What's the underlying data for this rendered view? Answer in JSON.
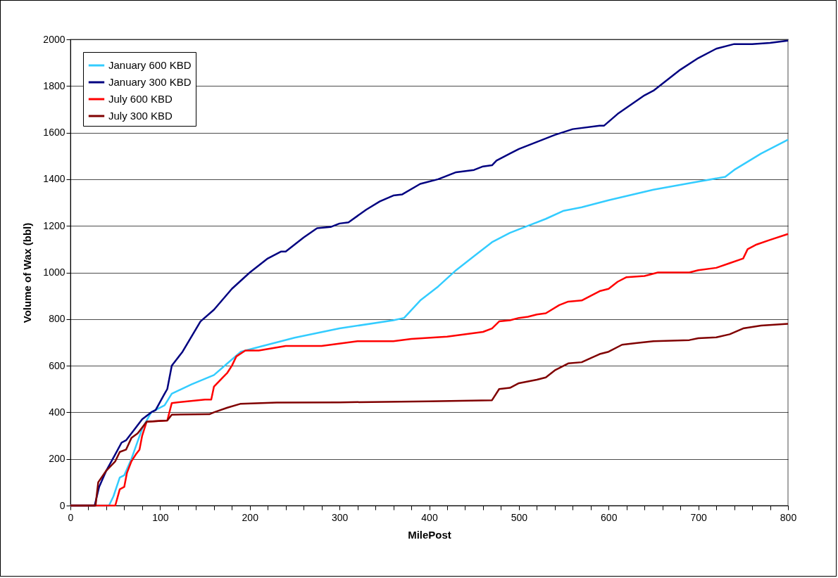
{
  "chart_data": {
    "type": "line",
    "xlabel": "MilePost",
    "ylabel": "Volume of Wax (bbl)",
    "xlim": [
      0,
      800
    ],
    "xticks": [
      0,
      {
        "value": 20,
        "label": null
      },
      {
        "value": 40,
        "label": null
      },
      {
        "value": 60,
        "label": null
      },
      {
        "value": 80,
        "label": null
      },
      100,
      {
        "value": 120,
        "label": null
      },
      {
        "value": 140,
        "label": null
      },
      {
        "value": 160,
        "label": null
      },
      {
        "value": 180,
        "label": null
      },
      200,
      {
        "value": 220,
        "label": null
      },
      {
        "value": 240,
        "label": null
      },
      {
        "value": 260,
        "label": null
      },
      {
        "value": 280,
        "label": null
      },
      300,
      {
        "value": 320,
        "label": null
      },
      {
        "value": 340,
        "label": null
      },
      {
        "value": 360,
        "label": null
      },
      {
        "value": 380,
        "label": null
      },
      400,
      {
        "value": 420,
        "label": null
      },
      {
        "value": 440,
        "label": null
      },
      {
        "value": 460,
        "label": null
      },
      {
        "value": 480,
        "label": null
      },
      500,
      {
        "value": 520,
        "label": null
      },
      {
        "value": 540,
        "label": null
      },
      {
        "value": 560,
        "label": null
      },
      {
        "value": 580,
        "label": null
      },
      600,
      {
        "value": 620,
        "label": null
      },
      {
        "value": 640,
        "label": null
      },
      {
        "value": 660,
        "label": null
      },
      {
        "value": 680,
        "label": null
      },
      700,
      {
        "value": 720,
        "label": null
      },
      {
        "value": 740,
        "label": null
      },
      {
        "value": 760,
        "label": null
      },
      {
        "value": 780,
        "label": null
      },
      800
    ],
    "ylim": [
      0,
      2000
    ],
    "yticks": [
      0,
      200,
      400,
      600,
      800,
      1000,
      1200,
      1400,
      1600,
      1800,
      2000
    ],
    "grid": "y",
    "legend": "top left",
    "series": [
      {
        "name": "January 600 KBD",
        "color": "#33ccff",
        "x": [
          0,
          43,
          48,
          55,
          60,
          68,
          80,
          90,
          105,
          113,
          135,
          160,
          175,
          190,
          210,
          250,
          300,
          360,
          372,
          390,
          410,
          430,
          450,
          470,
          490,
          510,
          530,
          550,
          570,
          600,
          650,
          700,
          730,
          740,
          770,
          800
        ],
        "values": [
          0,
          0,
          40,
          120,
          130,
          200,
          330,
          400,
          430,
          480,
          520,
          560,
          610,
          660,
          680,
          720,
          760,
          795,
          805,
          880,
          940,
          1010,
          1070,
          1130,
          1170,
          1200,
          1230,
          1265,
          1280,
          1310,
          1355,
          1390,
          1410,
          1440,
          1510,
          1570
        ]
      },
      {
        "name": "January 300 KBD",
        "color": "#000080",
        "x": [
          0,
          27,
          32,
          40,
          50,
          57,
          62,
          70,
          80,
          90,
          95,
          105,
          108,
          113,
          125,
          145,
          160,
          180,
          200,
          220,
          235,
          240,
          260,
          275,
          290,
          300,
          310,
          330,
          345,
          360,
          370,
          390,
          410,
          430,
          450,
          460,
          470,
          475,
          490,
          500,
          520,
          540,
          560,
          590,
          595,
          610,
          640,
          650,
          680,
          700,
          720,
          740,
          760,
          780,
          800
        ],
        "values": [
          0,
          0,
          80,
          150,
          220,
          270,
          280,
          320,
          370,
          400,
          410,
          480,
          500,
          600,
          660,
          790,
          840,
          930,
          1000,
          1060,
          1090,
          1090,
          1150,
          1190,
          1195,
          1210,
          1215,
          1270,
          1305,
          1330,
          1335,
          1380,
          1400,
          1430,
          1440,
          1455,
          1460,
          1480,
          1510,
          1530,
          1560,
          1590,
          1615,
          1630,
          1630,
          1680,
          1760,
          1780,
          1870,
          1920,
          1960,
          1980,
          1980,
          1985,
          1995
        ]
      },
      {
        "name": "July 600 KBD",
        "color": "#ff0000",
        "x": [
          0,
          50,
          55,
          60,
          63,
          68,
          73,
          77,
          80,
          85,
          108,
          113,
          150,
          157,
          160,
          170,
          175,
          180,
          185,
          195,
          210,
          240,
          280,
          320,
          360,
          380,
          420,
          460,
          470,
          478,
          490,
          500,
          510,
          520,
          530,
          545,
          555,
          570,
          590,
          600,
          610,
          620,
          640,
          655,
          690,
          700,
          720,
          735,
          750,
          755,
          765,
          780,
          800
        ],
        "values": [
          0,
          0,
          70,
          80,
          140,
          190,
          220,
          240,
          300,
          360,
          365,
          440,
          455,
          455,
          510,
          550,
          570,
          600,
          640,
          665,
          665,
          685,
          685,
          705,
          705,
          715,
          725,
          745,
          760,
          790,
          795,
          805,
          810,
          820,
          825,
          860,
          875,
          880,
          920,
          930,
          960,
          980,
          985,
          1000,
          1000,
          1010,
          1020,
          1040,
          1060,
          1100,
          1120,
          1140,
          1165
        ]
      },
      {
        "name": "July 300 KBD",
        "color": "#800000",
        "x": [
          0,
          28,
          31,
          40,
          50,
          55,
          62,
          68,
          75,
          85,
          108,
          113,
          155,
          160,
          175,
          190,
          230,
          300,
          400,
          470,
          478,
          490,
          500,
          520,
          530,
          540,
          555,
          570,
          590,
          600,
          615,
          630,
          650,
          690,
          700,
          720,
          735,
          750,
          770,
          800
        ],
        "values": [
          0,
          0,
          100,
          150,
          190,
          230,
          240,
          290,
          310,
          360,
          365,
          390,
          392,
          400,
          420,
          437,
          442,
          443,
          447,
          452,
          500,
          505,
          525,
          540,
          550,
          580,
          610,
          615,
          650,
          660,
          690,
          697,
          705,
          710,
          718,
          722,
          735,
          760,
          772,
          780
        ]
      }
    ]
  }
}
